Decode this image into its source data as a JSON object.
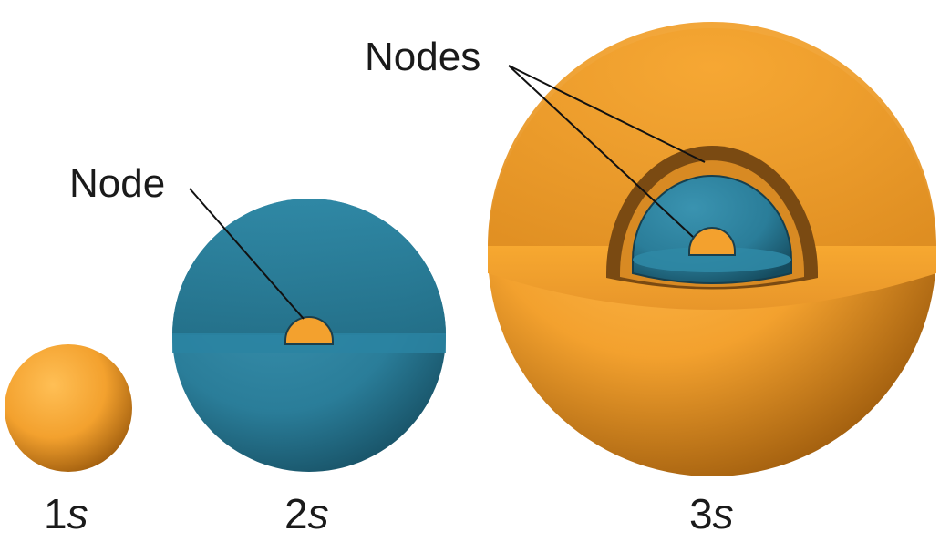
{
  "colors": {
    "orange": "#f3a12e",
    "orange_dark": "#b86e12",
    "teal": "#2a7d99",
    "teal_dark": "#1b5a70",
    "leader": "#111111",
    "text": "#1a1a1a"
  },
  "orbitals": [
    {
      "number": "1",
      "subshell": "s",
      "nodes": 0
    },
    {
      "number": "2",
      "subshell": "s",
      "nodes": 1
    },
    {
      "number": "3",
      "subshell": "s",
      "nodes": 2
    }
  ],
  "callouts": {
    "node": "Node",
    "nodes": "Nodes"
  }
}
